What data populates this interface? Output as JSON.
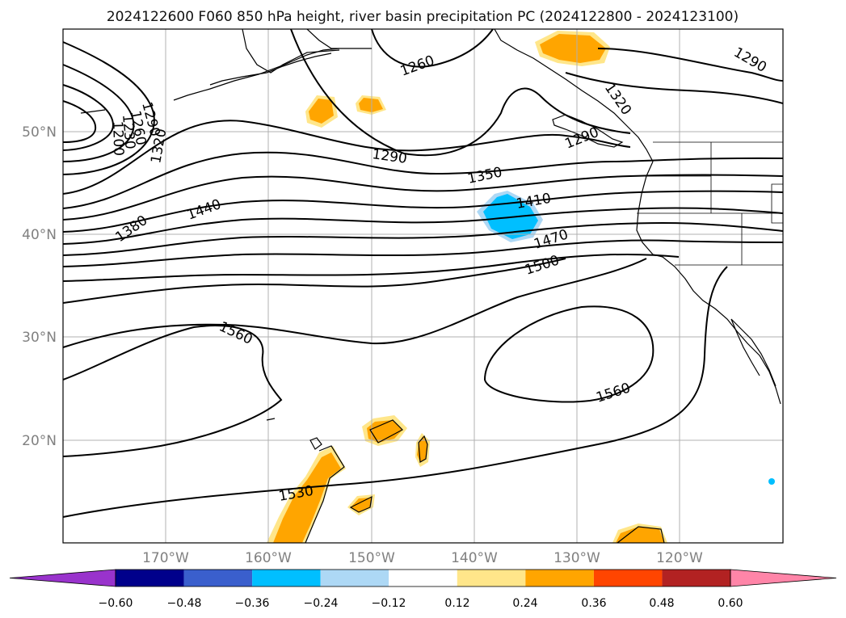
{
  "title": "2024122600 F060 850 hPa height, river basin precipitation PC (2024122800 - 2024123100)",
  "lat_labels": [
    "50°N",
    "40°N",
    "30°N",
    "20°N"
  ],
  "lon_labels": [
    "170°W",
    "160°W",
    "150°W",
    "140°W",
    "130°W",
    "120°W"
  ],
  "contour_labels": [
    "1290",
    "1260",
    "1230",
    "1200",
    "1320",
    "1380",
    "1440",
    "1260",
    "1290",
    "1350",
    "1410",
    "1470",
    "1500",
    "1320",
    "1290",
    "1290",
    "1560",
    "1560",
    "1530"
  ],
  "colorbar": {
    "ticks": [
      "−0.60",
      "−0.48",
      "−0.36",
      "−0.24",
      "−0.12",
      "0.12",
      "0.24",
      "0.36",
      "0.48",
      "0.60"
    ],
    "colors": [
      "#9933cc",
      "#00008b",
      "#3a5fcd",
      "#00bfff",
      "#add8f5",
      "#ffffff",
      "#ffe68a",
      "#ffa500",
      "#ff4500",
      "#b22222",
      "#ff85a8"
    ]
  },
  "colors": {
    "precip_low": "#ffe68a",
    "precip_mid": "#ffa500",
    "precip_neg": "#00bfff",
    "precip_neg_light": "#add8f5"
  }
}
